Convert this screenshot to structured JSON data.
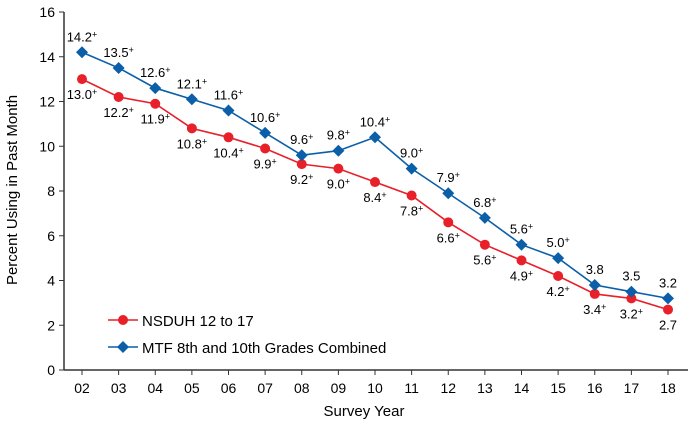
{
  "chart_data": {
    "type": "line",
    "xlabel": "Survey Year",
    "ylabel": "Percent Using in Past Month",
    "ylim": [
      0,
      16
    ],
    "yticks": [
      0,
      2,
      4,
      6,
      8,
      10,
      12,
      14,
      16
    ],
    "categories": [
      "02",
      "03",
      "04",
      "05",
      "06",
      "07",
      "08",
      "09",
      "10",
      "11",
      "12",
      "13",
      "14",
      "15",
      "16",
      "17",
      "18"
    ],
    "grid": false,
    "legend_placement": "bottom-left",
    "series": [
      {
        "name": "NSDUH 12 to 17",
        "color": "#e8202a",
        "marker": "circle",
        "label_position": "below",
        "values": [
          13.0,
          12.2,
          11.9,
          10.8,
          10.4,
          9.9,
          9.2,
          9.0,
          8.4,
          7.8,
          6.6,
          5.6,
          4.9,
          4.2,
          3.4,
          3.2,
          2.7
        ],
        "labels": [
          "13.0+",
          "12.2+",
          "11.9+",
          "10.8+",
          "10.4+",
          "9.9+",
          "9.2+",
          "9.0+",
          "8.4+",
          "7.8+",
          "6.6+",
          "5.6+",
          "4.9+",
          "4.2+",
          "3.4+",
          "3.2+",
          "2.7"
        ]
      },
      {
        "name": "MTF 8th and 10th Grades Combined",
        "color": "#0b5fa8",
        "marker": "diamond",
        "label_position": "above",
        "values": [
          14.2,
          13.5,
          12.6,
          12.1,
          11.6,
          10.6,
          9.6,
          9.8,
          10.4,
          9.0,
          7.9,
          6.8,
          5.6,
          5.0,
          3.8,
          3.5,
          3.2
        ],
        "labels": [
          "14.2+",
          "13.5+",
          "12.6+",
          "12.1+",
          "11.6+",
          "10.6+",
          "9.6+",
          "9.8+",
          "10.4+",
          "9.0+",
          "7.9+",
          "6.8+",
          "5.6+",
          "5.0+",
          "3.8",
          "3.5",
          "3.2"
        ]
      }
    ]
  }
}
